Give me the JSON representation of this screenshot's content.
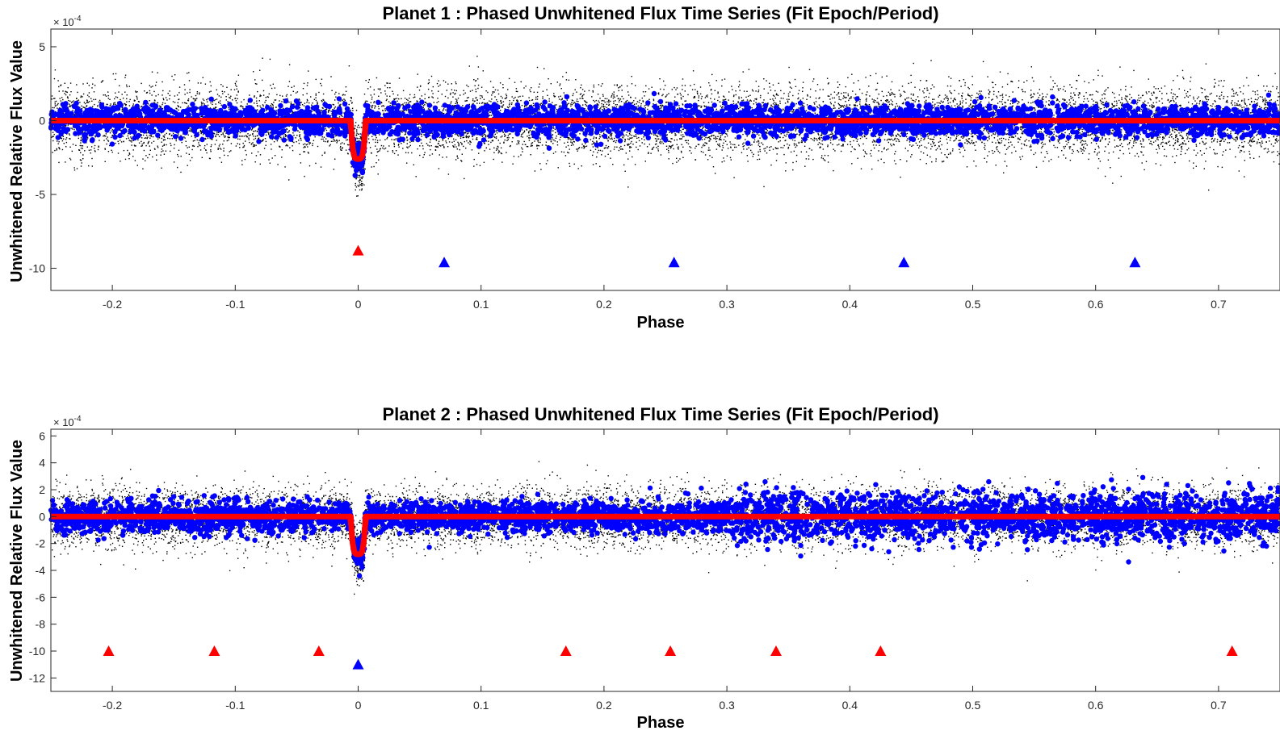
{
  "chart_data": [
    {
      "type": "scatter",
      "title": "Planet 1 : Phased Unwhitened Flux Time Series (Fit Epoch/Period)",
      "xlabel": "Phase",
      "ylabel": "Unwhitened Relative Flux Value",
      "y_multiplier": "× 10",
      "y_multiplier_exp": "-4",
      "xlim": [
        -0.25,
        0.75
      ],
      "ylim": [
        -11.5,
        6.2
      ],
      "x_ticks": [
        -0.2,
        -0.1,
        0,
        0.1,
        0.2,
        0.3,
        0.4,
        0.5,
        0.6,
        0.7
      ],
      "x_tick_labels": [
        "-0.2",
        "-0.1",
        "0",
        "0.1",
        "0.2",
        "0.3",
        "0.4",
        "0.5",
        "0.6",
        "0.7"
      ],
      "y_ticks": [
        5,
        0,
        -5,
        -10
      ],
      "y_tick_labels": [
        "5",
        "0",
        "-5",
        "-10"
      ],
      "grid": false,
      "colors": {
        "raw": "#000000",
        "binned": "#0000ff",
        "model": "#ff0000",
        "marker_red": "#ff0000",
        "marker_blue": "#0000ff"
      },
      "transit": {
        "phase": 0.0,
        "depth": -2.6,
        "half_width": 0.006
      },
      "raw_scatter_sigma": 1.2,
      "binned_scatter_sigma": 0.5,
      "model_level": 0.0,
      "markers": [
        {
          "x": 0.0,
          "y": -8.8,
          "color": "red"
        },
        {
          "x": 0.07,
          "y": -9.6,
          "color": "blue"
        },
        {
          "x": 0.257,
          "y": -9.6,
          "color": "blue"
        },
        {
          "x": 0.444,
          "y": -9.6,
          "color": "blue"
        },
        {
          "x": 0.632,
          "y": -9.6,
          "color": "blue"
        }
      ]
    },
    {
      "type": "scatter",
      "title": "Planet 2 : Phased Unwhitened Flux Time Series (Fit Epoch/Period)",
      "xlabel": "Phase",
      "ylabel": "Unwhitened Relative Flux Value",
      "y_multiplier": "× 10",
      "y_multiplier_exp": "-4",
      "xlim": [
        -0.25,
        0.75
      ],
      "ylim": [
        -13,
        6.5
      ],
      "x_ticks": [
        -0.2,
        -0.1,
        0,
        0.1,
        0.2,
        0.3,
        0.4,
        0.5,
        0.6,
        0.7
      ],
      "x_tick_labels": [
        "-0.2",
        "-0.1",
        "0",
        "0.1",
        "0.2",
        "0.3",
        "0.4",
        "0.5",
        "0.6",
        "0.7"
      ],
      "y_ticks": [
        6,
        4,
        2,
        0,
        -2,
        -4,
        -6,
        -8,
        -10,
        -12
      ],
      "y_tick_labels": [
        "6",
        "4",
        "2",
        "0",
        "-2",
        "-4",
        "-6",
        "-8",
        "-10",
        "-12"
      ],
      "grid": false,
      "colors": {
        "raw": "#000000",
        "binned": "#0000ff",
        "model": "#ff0000",
        "marker_red": "#ff0000",
        "marker_blue": "#0000ff"
      },
      "transit": {
        "phase": 0.0,
        "depth": -2.8,
        "half_width": 0.006
      },
      "raw_scatter_sigma": 1.1,
      "binned_scatter_sigma": 0.6,
      "model_level": 0.0,
      "markers": [
        {
          "x": -0.203,
          "y": -10.0,
          "color": "red"
        },
        {
          "x": -0.117,
          "y": -10.0,
          "color": "red"
        },
        {
          "x": -0.032,
          "y": -10.0,
          "color": "red"
        },
        {
          "x": 0.0,
          "y": -11.0,
          "color": "blue"
        },
        {
          "x": 0.169,
          "y": -10.0,
          "color": "red"
        },
        {
          "x": 0.254,
          "y": -10.0,
          "color": "red"
        },
        {
          "x": 0.34,
          "y": -10.0,
          "color": "red"
        },
        {
          "x": 0.425,
          "y": -10.0,
          "color": "red"
        },
        {
          "x": 0.711,
          "y": -10.0,
          "color": "red"
        }
      ]
    }
  ]
}
